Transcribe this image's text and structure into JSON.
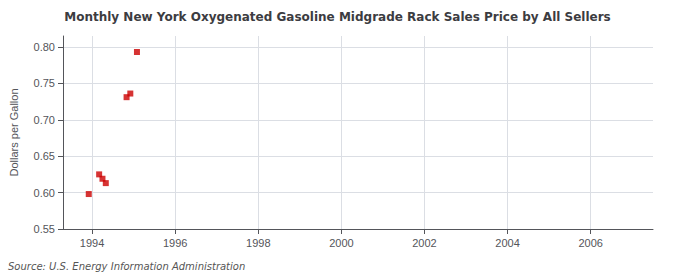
{
  "chart_data": {
    "type": "scatter",
    "title": "Monthly New York Oxygenated Gasoline Midgrade Rack Sales Price by All Sellers",
    "ylabel": "Dollars per Gallon",
    "annotation": "Source: U.S. Energy Information Administration",
    "x": [
      1993.92,
      1994.17,
      1994.25,
      1994.33,
      1994.83,
      1994.92,
      1995.08
    ],
    "values": [
      0.598,
      0.625,
      0.619,
      0.613,
      0.731,
      0.736,
      0.793
    ],
    "color": "#cc0000",
    "marker": "square",
    "xlim": [
      1993.3,
      2007.5
    ],
    "ylim": [
      0.55,
      0.815
    ],
    "xticks": [
      1994,
      1996,
      1998,
      2000,
      2002,
      2004,
      2006
    ],
    "yticks": [
      0.55,
      {
        "value": 0.6,
        "label": "0.60"
      },
      0.65,
      {
        "value": 0.7,
        "label": "0.70"
      },
      0.75,
      {
        "value": 0.8,
        "label": "0.80"
      }
    ],
    "grid": true
  }
}
